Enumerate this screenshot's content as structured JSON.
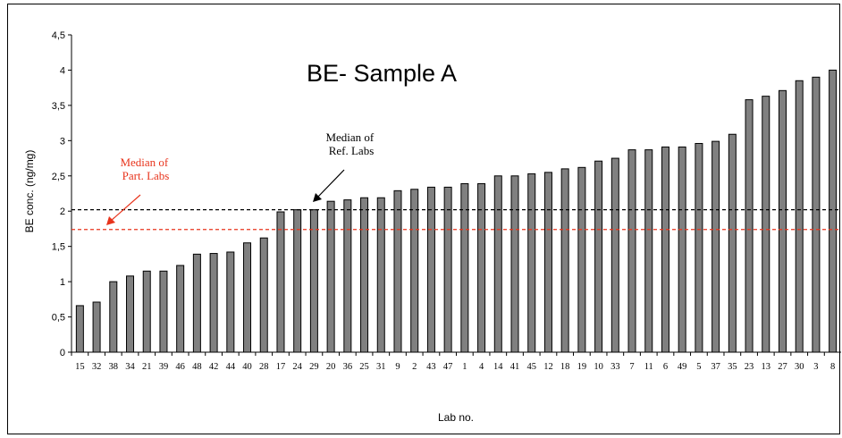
{
  "chart_data": {
    "type": "bar",
    "title": "BE- Sample A",
    "xlabel": "Lab no.",
    "ylabel": "BE conc. (ng/mg)",
    "ylim": [
      0,
      4.5
    ],
    "yticks": [
      "0",
      "0,5",
      "1",
      "1,5",
      "2",
      "2,5",
      "3",
      "3,5",
      "4",
      "4,5"
    ],
    "grid": false,
    "categories": [
      "15",
      "32",
      "38",
      "34",
      "21",
      "39",
      "46",
      "48",
      "42",
      "44",
      "40",
      "28",
      "17",
      "24",
      "29",
      "20",
      "36",
      "25",
      "31",
      "9",
      "2",
      "43",
      "47",
      "1",
      "4",
      "14",
      "41",
      "45",
      "12",
      "18",
      "19",
      "10",
      "33",
      "7",
      "11",
      "6",
      "49",
      "5",
      "37",
      "35",
      "23",
      "13",
      "27",
      "30",
      "3",
      "8"
    ],
    "values": [
      0.66,
      0.71,
      1.0,
      1.08,
      1.15,
      1.15,
      1.23,
      1.39,
      1.4,
      1.42,
      1.55,
      1.62,
      1.99,
      2.02,
      2.02,
      2.14,
      2.16,
      2.19,
      2.19,
      2.29,
      2.31,
      2.34,
      2.34,
      2.39,
      2.39,
      2.5,
      2.5,
      2.53,
      2.55,
      2.6,
      2.62,
      2.71,
      2.75,
      2.87,
      2.87,
      2.91,
      2.91,
      2.96,
      2.99,
      3.09,
      3.58,
      3.63,
      3.71,
      3.85,
      3.9,
      4.0
    ],
    "bar_color": "#808080",
    "reference_lines": [
      {
        "value": 2.02,
        "color": "#000000",
        "style": "dashed"
      },
      {
        "value": 1.74,
        "color": "#e8341c",
        "style": "dashed"
      }
    ],
    "annotations": [
      {
        "text": [
          "Median of",
          "Ref. Labs"
        ],
        "color": "#000000"
      },
      {
        "text": [
          "Median of",
          "Part. Labs"
        ],
        "color": "#e8341c"
      }
    ]
  }
}
